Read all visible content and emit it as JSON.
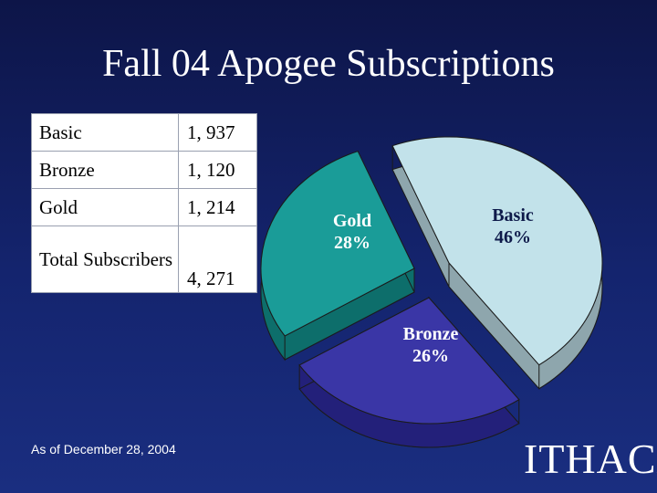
{
  "slide": {
    "title": "Fall 04 Apogee Subscriptions",
    "footnote": "As of December 28, 2004",
    "logo_text": "ITHACA"
  },
  "table": {
    "rows": [
      {
        "label": "Basic",
        "value": "1, 937"
      },
      {
        "label": "Bronze",
        "value": "1, 120"
      },
      {
        "label": "Gold",
        "value": "1, 214"
      },
      {
        "label": "Total Subscribers",
        "value": "4, 271"
      }
    ]
  },
  "chart_data": {
    "type": "pie",
    "style": "3d-exploded",
    "title": "",
    "slices": [
      {
        "name": "Basic",
        "value": 46,
        "display": "46%",
        "color": "#c2e2ea",
        "side_color": "#8ea6ad",
        "label_color": "#0e1a4a"
      },
      {
        "name": "Bronze",
        "value": 26,
        "display": "26%",
        "color": "#3a36a6",
        "side_color": "#23207a",
        "label_color": "#ffffff"
      },
      {
        "name": "Gold",
        "value": 28,
        "display": "28%",
        "color": "#1a9c98",
        "side_color": "#0d6e6b",
        "label_color": "#ffffff"
      }
    ]
  }
}
